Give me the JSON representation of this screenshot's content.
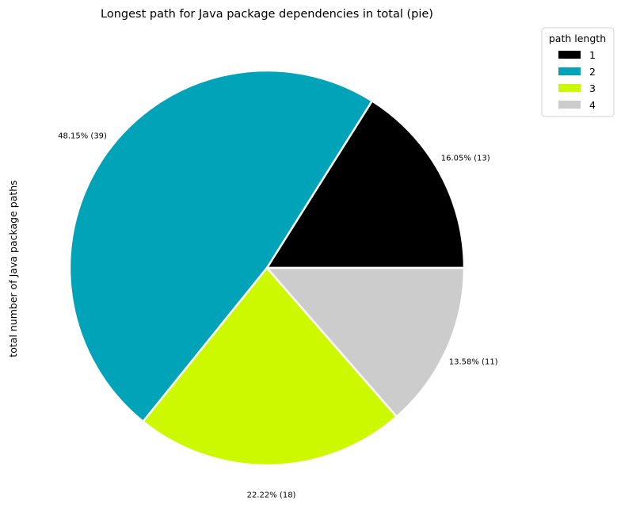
{
  "chart_data": {
    "type": "pie",
    "title": "Longest path for Java package dependencies in total (pie)",
    "ylabel": "total number of Java package paths",
    "legend": {
      "title": "path length",
      "placement": "top-right (outside)"
    },
    "slices": [
      {
        "label": "1",
        "value": 13,
        "percent_label": "16.05% (13)",
        "color": "#000000"
      },
      {
        "label": "2",
        "value": 39,
        "percent_label": "48.15% (39)",
        "color": "#00a3b8"
      },
      {
        "label": "3",
        "value": 18,
        "percent_label": "22.22% (18)",
        "color": "#ccf900"
      },
      {
        "label": "4",
        "value": 11,
        "percent_label": "13.58% (11)",
        "color": "#cccccc"
      }
    ],
    "start_angle_deg": 0,
    "direction": "counterclockwise",
    "wedge_edge_color": "#ffffff"
  }
}
